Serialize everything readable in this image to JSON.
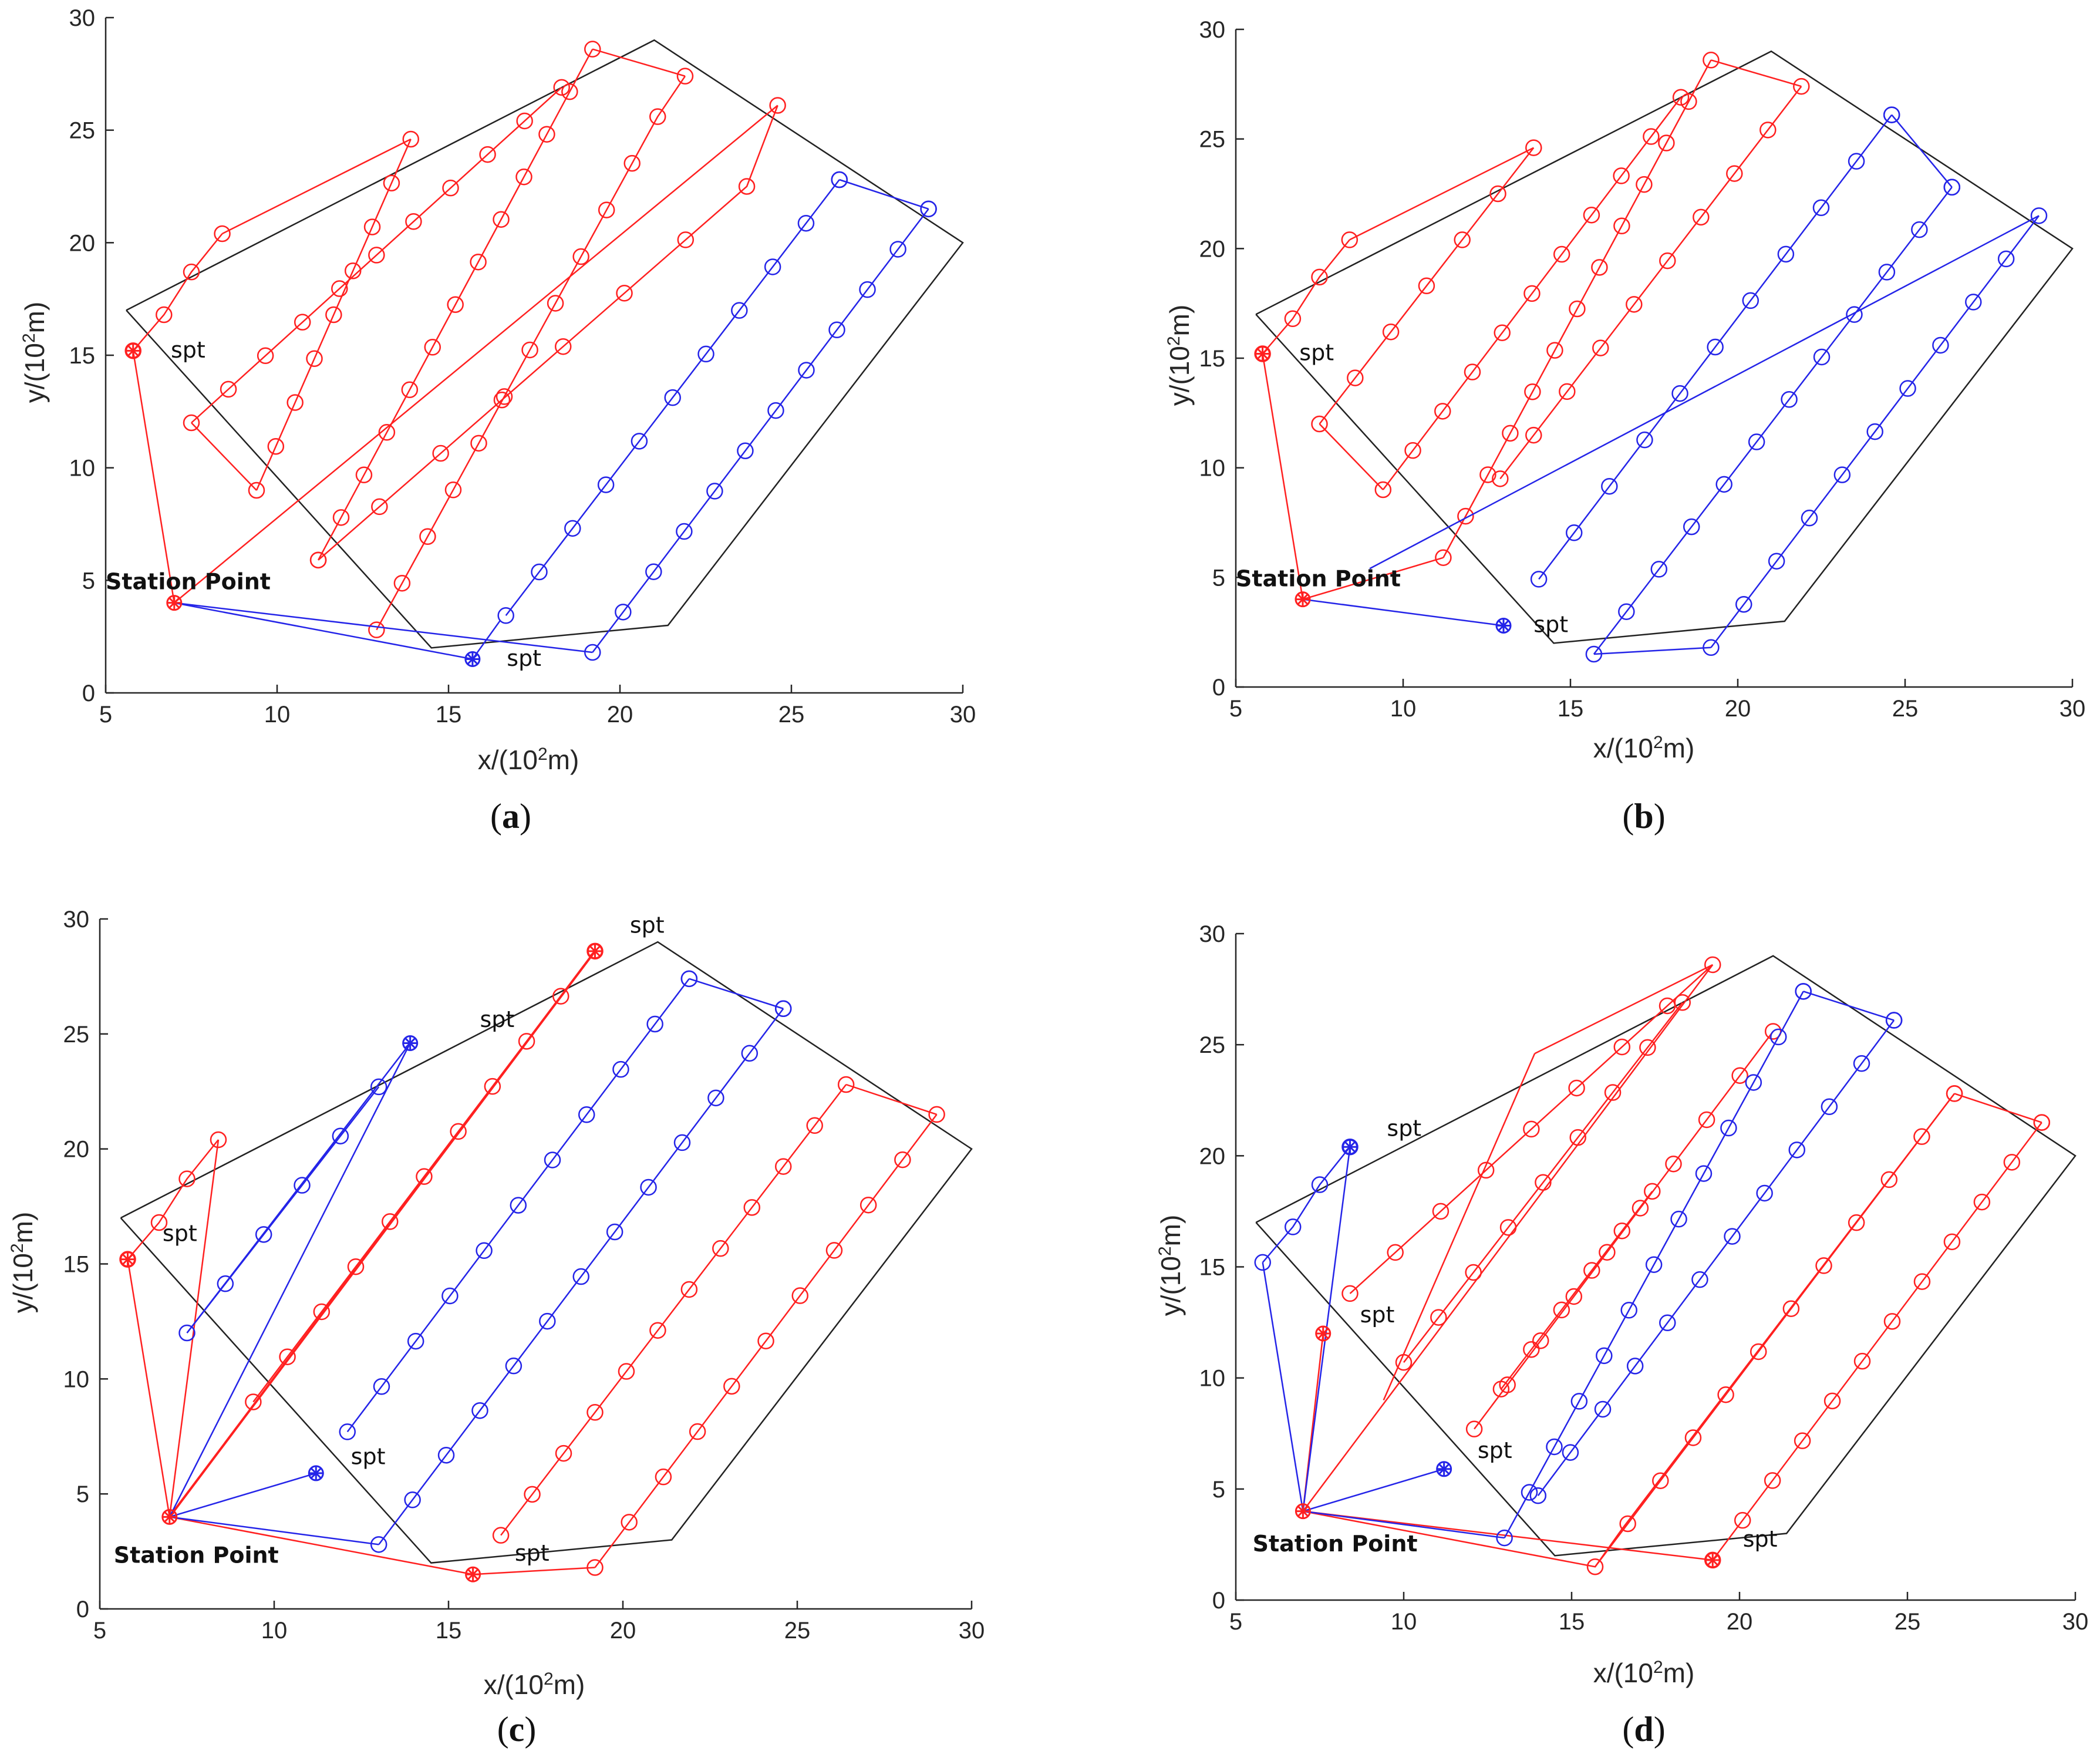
{
  "colors": {
    "red": "#ff2020",
    "blue": "#2424e8",
    "black": "#222222",
    "axis": "#262626"
  },
  "chart_data": [
    {
      "panel_label": "a",
      "type": "line",
      "xlabel": "x/(10",
      "xlabel_sup": "2",
      "xlabel_end": "m)",
      "ylabel": "y/(10",
      "ylabel_sup": "2",
      "ylabel_end": "m)",
      "xlim": [
        5,
        30
      ],
      "ylim": [
        0,
        30
      ],
      "xticks": [
        5,
        10,
        15,
        20,
        25,
        30
      ],
      "yticks": [
        0,
        5,
        10,
        15,
        20,
        25,
        30
      ],
      "boundary": [
        [
          5.6,
          17
        ],
        [
          21,
          29
        ],
        [
          30,
          20
        ],
        [
          21.4,
          3
        ],
        [
          14.5,
          2
        ],
        [
          5.6,
          17
        ]
      ],
      "series": [
        {
          "name": "red",
          "color_key": "red",
          "marker_step": 1,
          "points": [
            [
              5.8,
              15.2
            ],
            [
              7,
              4
            ],
            [
              24.6,
              26.1
            ],
            [
              21.9,
              27.4
            ],
            [
              19.2,
              28.6
            ],
            [
              13,
              2.8
            ],
            [
              11.2,
              5.9
            ],
            [
              18.3,
              26.9
            ],
            [
              14,
              24.6
            ],
            [
              8.4,
              20.4
            ],
            [
              7.5,
              18.7
            ],
            [
              6.7,
              16.8
            ],
            [
              5.8,
              15.2
            ]
          ],
          "markers": [
            [
              24.6,
              26.1
            ],
            [
              21.9,
              27.4
            ],
            [
              19.2,
              28.6
            ],
            [
              13,
              2.8
            ],
            [
              11.2,
              5.9
            ],
            [
              18.3,
              26.9
            ],
            [
              14,
              24.6
            ],
            [
              8.4,
              20.4
            ],
            [
              7.5,
              18.7
            ],
            [
              6.7,
              16.8
            ],
            [
              9.4,
              9
            ],
            [
              7.5,
              12
            ]
          ]
        },
        {
          "name": "blue",
          "color_key": "blue",
          "points": [
            [
              7,
              4
            ],
            [
              15.7,
              1.5
            ],
            [
              16.5,
              3.2
            ],
            [
              26.4,
              22.8
            ],
            [
              29,
              21.5
            ],
            [
              19.2,
              1.8
            ],
            [
              7,
              4
            ]
          ]
        }
      ],
      "extra_red_lines": [
        [
          [
            7.5,
            12
          ],
          [
            13,
            22.7
          ]
        ],
        [
          [
            9.4,
            9
          ],
          [
            16,
            20
          ]
        ]
      ],
      "annotations": [
        {
          "text": "spt",
          "x": 6.9,
          "y": 14.9,
          "bold": false
        },
        {
          "text": "Station Point",
          "x": 5.0,
          "y": 4.6,
          "bold": true
        },
        {
          "text": "spt",
          "x": 16.7,
          "y": 1.2,
          "bold": false
        }
      ],
      "star_points": [
        {
          "x": 5.8,
          "y": 15.2,
          "color_key": "red"
        },
        {
          "x": 7,
          "y": 4,
          "color_key": "red"
        },
        {
          "x": 15.7,
          "y": 1.5,
          "color_key": "blue"
        }
      ]
    },
    {
      "panel_label": "b",
      "type": "line",
      "xlabel": "x/(10",
      "xlabel_sup": "2",
      "xlabel_end": "m)",
      "ylabel": "y/(10",
      "ylabel_sup": "2",
      "ylabel_end": "m)",
      "xlim": [
        5,
        30
      ],
      "ylim": [
        0,
        30
      ],
      "xticks": [
        5,
        10,
        15,
        20,
        25,
        30
      ],
      "yticks": [
        0,
        5,
        10,
        15,
        20,
        25,
        30
      ],
      "boundary": [
        [
          5.6,
          17
        ],
        [
          21,
          29
        ],
        [
          30,
          20
        ],
        [
          21.4,
          3
        ],
        [
          14.5,
          2
        ],
        [
          5.6,
          17
        ]
      ],
      "annotations": [
        {
          "text": "spt",
          "x": 6.9,
          "y": 14.9,
          "bold": false
        },
        {
          "text": "Station Point",
          "x": 5.0,
          "y": 4.6,
          "bold": true
        },
        {
          "text": "spt",
          "x": 13.9,
          "y": 2.5,
          "bold": false
        }
      ],
      "star_points": [
        {
          "x": 5.8,
          "y": 15.2,
          "color_key": "red"
        },
        {
          "x": 7,
          "y": 4,
          "color_key": "red"
        },
        {
          "x": 13,
          "y": 2.8,
          "color_key": "blue"
        }
      ]
    },
    {
      "panel_label": "c",
      "type": "line",
      "xlabel": "x/(10",
      "xlabel_sup": "2",
      "xlabel_end": "m)",
      "ylabel": "y/(10",
      "ylabel_sup": "2",
      "ylabel_end": "m)",
      "xlim": [
        5,
        30
      ],
      "ylim": [
        0,
        30
      ],
      "xticks": [
        5,
        10,
        15,
        20,
        25,
        30
      ],
      "yticks": [
        0,
        5,
        10,
        15,
        20,
        25,
        30
      ],
      "boundary": [
        [
          5.6,
          17
        ],
        [
          21,
          29
        ],
        [
          30,
          20
        ],
        [
          21.4,
          3
        ],
        [
          14.5,
          2
        ],
        [
          5.6,
          17
        ]
      ],
      "annotations": [
        {
          "text": "spt",
          "x": 6.8,
          "y": 16.0,
          "bold": false
        },
        {
          "text": "spt",
          "x": 15.9,
          "y": 25.3,
          "bold": false
        },
        {
          "text": "spt",
          "x": 20.2,
          "y": 29.4,
          "bold": false
        },
        {
          "text": "spt",
          "x": 12.2,
          "y": 6.3,
          "bold": false
        },
        {
          "text": "Station Point",
          "x": 5.4,
          "y": 2.0,
          "bold": true
        },
        {
          "text": "spt",
          "x": 16.9,
          "y": 2.1,
          "bold": false
        }
      ],
      "star_points": [
        {
          "x": 5.8,
          "y": 15.2,
          "color_key": "red"
        },
        {
          "x": 13.9,
          "y": 24.6,
          "color_key": "blue"
        },
        {
          "x": 19.2,
          "y": 28.6,
          "color_key": "red"
        },
        {
          "x": 11.2,
          "y": 5.9,
          "color_key": "blue"
        },
        {
          "x": 7,
          "y": 4,
          "color_key": "red"
        },
        {
          "x": 15.7,
          "y": 1.5,
          "color_key": "red"
        }
      ]
    },
    {
      "panel_label": "d",
      "type": "line",
      "xlabel": "x/(10",
      "xlabel_sup": "2",
      "xlabel_end": "m)",
      "ylabel": "y/(10",
      "ylabel_sup": "2",
      "ylabel_end": "m)",
      "xlim": [
        5,
        30
      ],
      "ylim": [
        0,
        30
      ],
      "xticks": [
        5,
        10,
        15,
        20,
        25,
        30
      ],
      "yticks": [
        0,
        5,
        10,
        15,
        20,
        25,
        30
      ],
      "boundary": [
        [
          5.6,
          17
        ],
        [
          21,
          29
        ],
        [
          30,
          20
        ],
        [
          21.4,
          3
        ],
        [
          14.5,
          2
        ],
        [
          5.6,
          17
        ]
      ],
      "annotations": [
        {
          "text": "spt",
          "x": 9.5,
          "y": 20.9,
          "bold": false
        },
        {
          "text": "spt",
          "x": 8.7,
          "y": 12.5,
          "bold": false
        },
        {
          "text": "spt",
          "x": 12.2,
          "y": 6.4,
          "bold": false
        },
        {
          "text": "Station Point",
          "x": 5.5,
          "y": 2.2,
          "bold": true
        },
        {
          "text": "spt",
          "x": 20.1,
          "y": 2.4,
          "bold": false
        }
      ],
      "star_points": [
        {
          "x": 8.4,
          "y": 20.4,
          "color_key": "blue"
        },
        {
          "x": 7.6,
          "y": 12,
          "color_key": "red"
        },
        {
          "x": 11.2,
          "y": 5.9,
          "color_key": "blue"
        },
        {
          "x": 7,
          "y": 4,
          "color_key": "red"
        },
        {
          "x": 19.2,
          "y": 1.8,
          "color_key": "red"
        }
      ]
    }
  ]
}
